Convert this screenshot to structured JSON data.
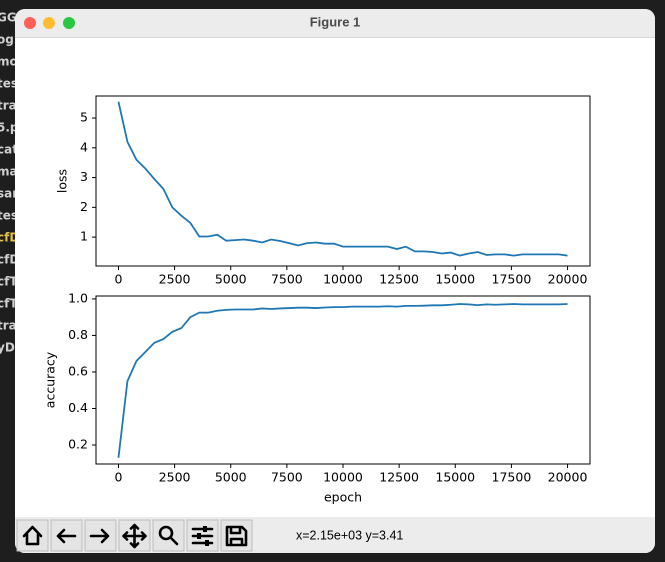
{
  "window": {
    "title": "Figure 1"
  },
  "sidebar": [
    "GG",
    "og",
    "mo",
    "tes",
    "trai",
    "5.p",
    "cat",
    "ma",
    "sar",
    "tes",
    "cfD",
    "cfD",
    "cfT",
    "cfT",
    "trai",
    "yD"
  ],
  "toolbar": {
    "status": "x=2.15e+03 y=3.41"
  },
  "chart_data": [
    {
      "type": "line",
      "ylabel": "loss",
      "color": "#1f77b4",
      "xlim": [
        -1000,
        21000
      ],
      "ylim": [
        0.03,
        5.74
      ],
      "xticks": [
        0,
        2500,
        5000,
        7500,
        10000,
        12500,
        15000,
        17500,
        20000
      ],
      "yticks": [
        1,
        2,
        3,
        4,
        5
      ],
      "x": [
        0,
        400,
        800,
        1200,
        1600,
        2000,
        2400,
        2800,
        3200,
        3600,
        4000,
        4400,
        4800,
        5200,
        5600,
        6000,
        6400,
        6800,
        7200,
        7600,
        8000,
        8400,
        8800,
        9200,
        9600,
        10000,
        10400,
        10800,
        11200,
        11600,
        12000,
        12400,
        12800,
        13200,
        13600,
        14000,
        14400,
        14800,
        15200,
        15600,
        16000,
        16400,
        16800,
        17200,
        17600,
        18000,
        18400,
        18800,
        19200,
        19600,
        20000
      ],
      "values": [
        5.55,
        4.2,
        3.6,
        3.3,
        2.95,
        2.62,
        2.0,
        1.72,
        1.48,
        1.02,
        1.02,
        1.08,
        0.88,
        0.9,
        0.92,
        0.88,
        0.82,
        0.92,
        0.87,
        0.8,
        0.72,
        0.8,
        0.82,
        0.78,
        0.78,
        0.68,
        0.68,
        0.68,
        0.68,
        0.68,
        0.68,
        0.6,
        0.68,
        0.52,
        0.52,
        0.5,
        0.45,
        0.48,
        0.38,
        0.45,
        0.5,
        0.4,
        0.42,
        0.42,
        0.38,
        0.42,
        0.42,
        0.42,
        0.42,
        0.42,
        0.38
      ]
    },
    {
      "type": "line",
      "ylabel": "accuracy",
      "xlabel": "epoch",
      "color": "#1f77b4",
      "xlim": [
        -1000,
        21000
      ],
      "ylim": [
        0.096,
        1.016
      ],
      "xticks": [
        0,
        2500,
        5000,
        7500,
        10000,
        12500,
        15000,
        17500,
        20000
      ],
      "yticks": [
        0.2,
        0.4,
        0.6,
        0.8,
        {
          "value": 1,
          "label": "1.0"
        }
      ],
      "x": [
        0,
        400,
        800,
        1200,
        1600,
        2000,
        2400,
        2800,
        3200,
        3600,
        4000,
        4400,
        4800,
        5200,
        5600,
        6000,
        6400,
        6800,
        7200,
        7600,
        8000,
        8400,
        8800,
        9200,
        9600,
        10000,
        10400,
        10800,
        11200,
        11600,
        12000,
        12400,
        12800,
        13200,
        13600,
        14000,
        14400,
        14800,
        15200,
        15600,
        16000,
        16400,
        16800,
        17200,
        17600,
        18000,
        18400,
        18800,
        19200,
        19600,
        20000
      ],
      "values": [
        0.13,
        0.55,
        0.66,
        0.71,
        0.76,
        0.78,
        0.82,
        0.84,
        0.9,
        0.925,
        0.925,
        0.935,
        0.94,
        0.942,
        0.942,
        0.942,
        0.948,
        0.945,
        0.948,
        0.95,
        0.952,
        0.952,
        0.95,
        0.953,
        0.955,
        0.955,
        0.958,
        0.958,
        0.958,
        0.958,
        0.96,
        0.958,
        0.962,
        0.962,
        0.963,
        0.965,
        0.965,
        0.968,
        0.972,
        0.97,
        0.966,
        0.97,
        0.968,
        0.97,
        0.972,
        0.97,
        0.97,
        0.97,
        0.97,
        0.97,
        0.972
      ]
    }
  ]
}
